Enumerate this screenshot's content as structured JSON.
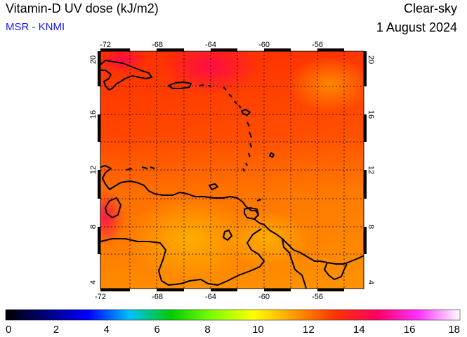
{
  "header": {
    "title": "Vitamin-D UV dose (kJ/m2)",
    "source": "MSR - KNMI",
    "sky_condition": "Clear-sky",
    "date": "1 August 2024"
  },
  "map": {
    "lon_ticks": [
      "-72",
      "-68",
      "-64",
      "-60",
      "-56"
    ],
    "lat_ticks": [
      "20",
      "16",
      "12",
      "8",
      "4"
    ],
    "region": "Caribbean / northern South America"
  },
  "colorbar": {
    "labels": [
      "0",
      "2",
      "4",
      "6",
      "8",
      "10",
      "12",
      "14",
      "16",
      "18"
    ],
    "min": 0,
    "max": 18,
    "stops": [
      "#000000",
      "#00007f",
      "#0000ff",
      "#00bfff",
      "#00cc00",
      "#7fff00",
      "#ffff00",
      "#ff9900",
      "#ff3300",
      "#ff0066",
      "#ff33ff",
      "#ffffff"
    ]
  },
  "colors": {
    "land_outline": "#000000",
    "grid": "#000000",
    "field_low": "#ff9900",
    "field_high": "#ff2a00"
  }
}
